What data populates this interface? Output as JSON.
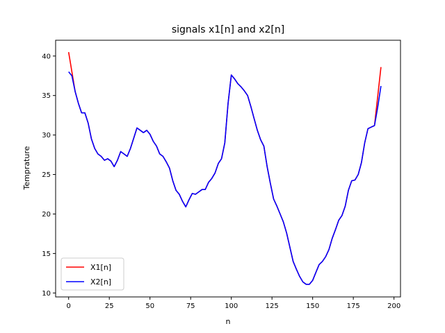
{
  "chart_data": {
    "type": "line",
    "title": "signals x1[n] and x2[n]",
    "xlabel": "n",
    "ylabel": "Temprature",
    "xlim": [
      -8,
      204
    ],
    "ylim": [
      9.5,
      42
    ],
    "xticks": [
      0,
      25,
      50,
      75,
      100,
      125,
      150,
      175,
      200
    ],
    "yticks": [
      10,
      15,
      20,
      25,
      30,
      35,
      40
    ],
    "grid": false,
    "legend_position": "lower-left",
    "key_points": [
      [
        0,
        38.0
      ],
      [
        2,
        37.5
      ],
      [
        4,
        35.5
      ],
      [
        6,
        34.0
      ],
      [
        8,
        32.8
      ],
      [
        10,
        32.8
      ],
      [
        12,
        31.5
      ],
      [
        14,
        29.5
      ],
      [
        16,
        28.3
      ],
      [
        18,
        27.6
      ],
      [
        20,
        27.3
      ],
      [
        22,
        26.8
      ],
      [
        24,
        27.0
      ],
      [
        26,
        26.7
      ],
      [
        28,
        26.0
      ],
      [
        30,
        26.8
      ],
      [
        32,
        27.9
      ],
      [
        34,
        27.6
      ],
      [
        36,
        27.3
      ],
      [
        38,
        28.3
      ],
      [
        40,
        29.6
      ],
      [
        42,
        30.9
      ],
      [
        44,
        30.6
      ],
      [
        46,
        30.3
      ],
      [
        48,
        30.6
      ],
      [
        50,
        30.1
      ],
      [
        52,
        29.2
      ],
      [
        54,
        28.6
      ],
      [
        56,
        27.6
      ],
      [
        58,
        27.3
      ],
      [
        60,
        26.6
      ],
      [
        62,
        25.8
      ],
      [
        64,
        24.2
      ],
      [
        66,
        23.0
      ],
      [
        68,
        22.5
      ],
      [
        70,
        21.6
      ],
      [
        72,
        20.9
      ],
      [
        74,
        21.8
      ],
      [
        76,
        22.6
      ],
      [
        78,
        22.5
      ],
      [
        80,
        22.8
      ],
      [
        82,
        23.1
      ],
      [
        84,
        23.1
      ],
      [
        86,
        24.0
      ],
      [
        88,
        24.5
      ],
      [
        90,
        25.2
      ],
      [
        92,
        26.4
      ],
      [
        94,
        27.0
      ],
      [
        96,
        29.0
      ],
      [
        98,
        34.0
      ],
      [
        100,
        37.6
      ],
      [
        102,
        37.1
      ],
      [
        104,
        36.5
      ],
      [
        106,
        36.1
      ],
      [
        108,
        35.6
      ],
      [
        110,
        35.0
      ],
      [
        112,
        33.6
      ],
      [
        114,
        32.1
      ],
      [
        116,
        30.6
      ],
      [
        118,
        29.4
      ],
      [
        120,
        28.6
      ],
      [
        122,
        26.0
      ],
      [
        124,
        23.9
      ],
      [
        126,
        21.9
      ],
      [
        128,
        21.0
      ],
      [
        130,
        20.0
      ],
      [
        132,
        19.0
      ],
      [
        134,
        17.6
      ],
      [
        136,
        15.8
      ],
      [
        138,
        14.0
      ],
      [
        140,
        13.0
      ],
      [
        142,
        12.1
      ],
      [
        144,
        11.4
      ],
      [
        146,
        11.1
      ],
      [
        148,
        11.1
      ],
      [
        150,
        11.6
      ],
      [
        152,
        12.6
      ],
      [
        154,
        13.6
      ],
      [
        156,
        14.0
      ],
      [
        158,
        14.6
      ],
      [
        160,
        15.5
      ],
      [
        162,
        16.9
      ],
      [
        164,
        18.0
      ],
      [
        166,
        19.2
      ],
      [
        168,
        19.8
      ],
      [
        170,
        21.0
      ],
      [
        172,
        23.0
      ],
      [
        174,
        24.2
      ],
      [
        176,
        24.3
      ],
      [
        178,
        25.0
      ],
      [
        180,
        26.5
      ],
      [
        182,
        29.0
      ],
      [
        184,
        30.8
      ],
      [
        186,
        31.0
      ],
      [
        188,
        31.2
      ],
      [
        190,
        33.5
      ],
      [
        192,
        36.2
      ]
    ],
    "series": [
      {
        "name": "X1[n]",
        "color": "#ff0000",
        "start": [
          0,
          40.5
        ],
        "start_until": 4,
        "end": [
          192,
          38.6
        ],
        "end_from": 188
      },
      {
        "name": "X2[n]",
        "color": "#0000ff"
      }
    ]
  }
}
